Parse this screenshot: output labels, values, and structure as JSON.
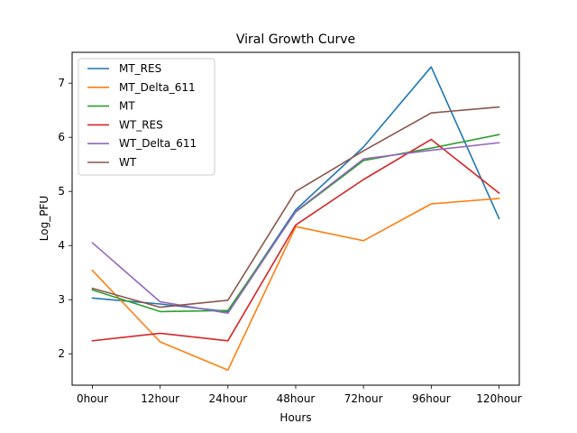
{
  "chart_data": {
    "type": "line",
    "title": "Viral Growth Curve",
    "xlabel": "Hours",
    "ylabel": "Log_PFU",
    "categories": [
      "0hour",
      "12hour",
      "24hour",
      "48hour",
      "72hour",
      "96hour",
      "120hour"
    ],
    "ylim": [
      1.42,
      7.57
    ],
    "yticks": [
      2,
      3,
      4,
      5,
      6,
      7
    ],
    "grid": false,
    "legend_position": "top-left",
    "series": [
      {
        "name": "MT_RES",
        "color": "#1f77b4",
        "values": [
          3.03,
          2.92,
          2.78,
          4.66,
          5.82,
          7.3,
          4.5
        ]
      },
      {
        "name": "MT_Delta_611",
        "color": "#ff7f0e",
        "values": [
          3.54,
          2.22,
          1.7,
          4.35,
          4.09,
          4.77,
          4.87
        ]
      },
      {
        "name": "MT",
        "color": "#2ca02c",
        "values": [
          3.18,
          2.78,
          2.8,
          4.62,
          5.57,
          5.8,
          6.05
        ]
      },
      {
        "name": "WT_RES",
        "color": "#d62728",
        "values": [
          2.24,
          2.38,
          2.24,
          4.38,
          5.22,
          5.96,
          4.97
        ]
      },
      {
        "name": "WT_Delta_611",
        "color": "#9467bd",
        "values": [
          4.05,
          2.96,
          2.75,
          4.63,
          5.6,
          5.76,
          5.9
        ]
      },
      {
        "name": "WT",
        "color": "#8c564b",
        "values": [
          3.21,
          2.86,
          2.99,
          5.0,
          5.75,
          6.45,
          6.56
        ]
      }
    ]
  }
}
